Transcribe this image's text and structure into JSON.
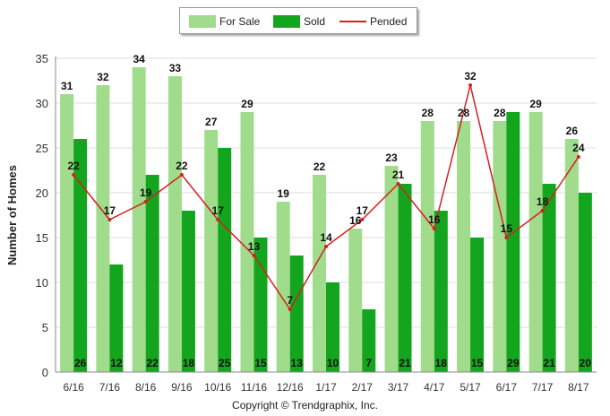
{
  "chart_data": {
    "type": "bar",
    "ylabel": "Number of Homes",
    "xlabel": "",
    "ylim": [
      0,
      35
    ],
    "yticks": [
      0,
      5,
      10,
      15,
      20,
      25,
      30,
      35
    ],
    "grid": true,
    "legend_position": "top-center",
    "categories": [
      "6/16",
      "7/16",
      "8/16",
      "9/16",
      "10/16",
      "11/16",
      "12/16",
      "1/17",
      "2/17",
      "3/17",
      "4/17",
      "5/17",
      "6/17",
      "7/17",
      "8/17"
    ],
    "series": [
      {
        "name": "For Sale",
        "kind": "bar",
        "color": "#a0dc8c",
        "values": [
          31,
          32,
          34,
          33,
          27,
          29,
          19,
          22,
          16,
          23,
          28,
          28,
          28,
          29,
          26
        ]
      },
      {
        "name": "Sold",
        "kind": "bar",
        "color": "#14a51e",
        "values": [
          26,
          12,
          22,
          18,
          25,
          15,
          13,
          10,
          7,
          21,
          18,
          15,
          29,
          21,
          20
        ]
      },
      {
        "name": "Pended",
        "kind": "line",
        "color": "#d42020",
        "values": [
          22,
          17,
          19,
          22,
          17,
          13,
          7,
          14,
          17,
          21,
          16,
          32,
          15,
          18,
          24
        ]
      }
    ]
  },
  "footer": {
    "copyright": "Copyright © Trendgraphix, Inc."
  }
}
